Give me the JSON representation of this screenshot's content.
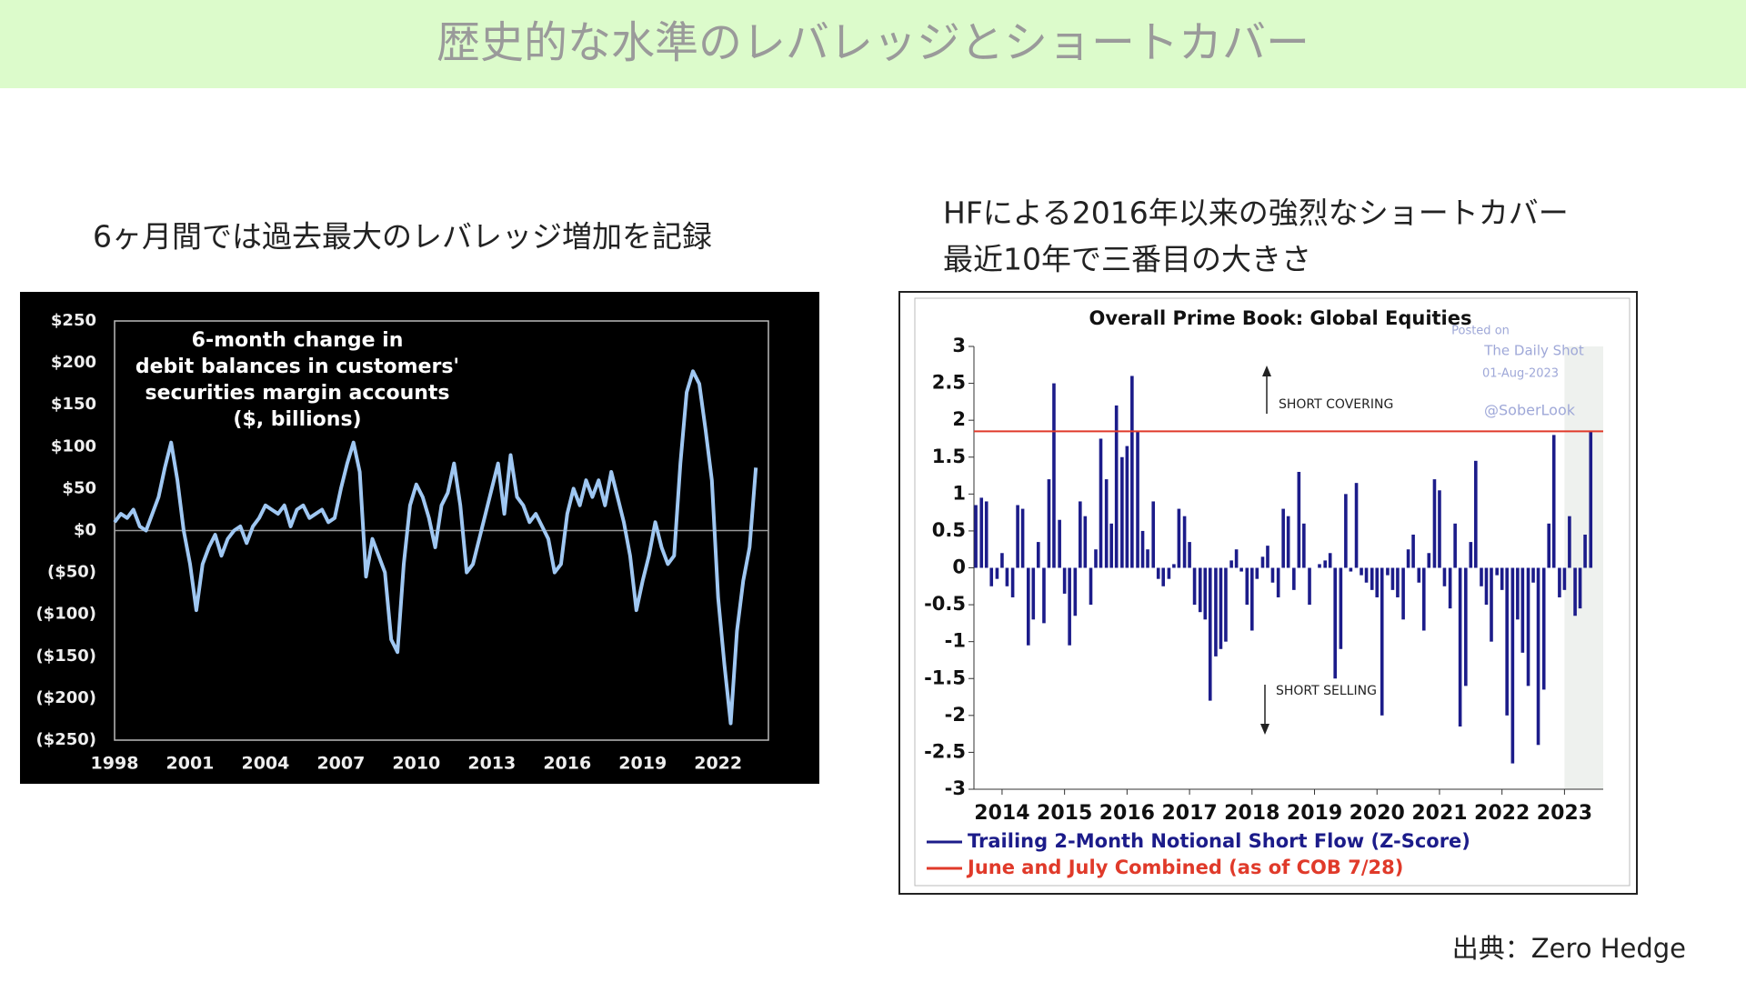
{
  "title": "歴史的な水準のレバレッジとショートカバー",
  "left_caption": "6ヶ月間では過去最大のレバレッジ増加を記録",
  "right_caption": [
    "HFによる2016年以来の強烈なショートカバー",
    "最近10年で三番目の大きさ"
  ],
  "source": "出典：Zero Hedge",
  "chart_data": [
    {
      "type": "line",
      "title_lines": [
        "6-month change in",
        "debit balances in customers'",
        "securities margin accounts",
        "($, billions)"
      ],
      "color": "#9fc7f2",
      "x": [
        1998,
        1998.25,
        1998.5,
        1998.75,
        1999,
        1999.25,
        1999.5,
        1999.75,
        2000,
        2000.25,
        2000.5,
        2000.75,
        2001,
        2001.25,
        2001.5,
        2001.75,
        2002,
        2002.25,
        2002.5,
        2002.75,
        2003,
        2003.25,
        2003.5,
        2003.75,
        2004,
        2004.25,
        2004.5,
        2004.75,
        2005,
        2005.25,
        2005.5,
        2005.75,
        2006,
        2006.25,
        2006.5,
        2006.75,
        2007,
        2007.25,
        2007.5,
        2007.75,
        2008,
        2008.25,
        2008.5,
        2008.75,
        2009,
        2009.25,
        2009.5,
        2009.75,
        2010,
        2010.25,
        2010.5,
        2010.75,
        2011,
        2011.25,
        2011.5,
        2011.75,
        2012,
        2012.25,
        2012.5,
        2012.75,
        2013,
        2013.25,
        2013.5,
        2013.75,
        2014,
        2014.25,
        2014.5,
        2014.75,
        2015,
        2015.25,
        2015.5,
        2015.75,
        2016,
        2016.25,
        2016.5,
        2016.75,
        2017,
        2017.25,
        2017.5,
        2017.75,
        2018,
        2018.25,
        2018.5,
        2018.75,
        2019,
        2019.25,
        2019.5,
        2019.75,
        2020,
        2020.25,
        2020.5,
        2020.75,
        2021,
        2021.25,
        2021.5,
        2021.75,
        2022,
        2022.25,
        2022.5,
        2022.75,
        2023,
        2023.25,
        2023.5
      ],
      "values": [
        10,
        20,
        15,
        25,
        5,
        0,
        20,
        40,
        75,
        105,
        60,
        0,
        -40,
        -95,
        -40,
        -20,
        -5,
        -30,
        -10,
        0,
        5,
        -15,
        5,
        15,
        30,
        25,
        20,
        30,
        5,
        25,
        30,
        15,
        20,
        25,
        10,
        15,
        50,
        80,
        105,
        70,
        -55,
        -10,
        -30,
        -50,
        -130,
        -145,
        -40,
        30,
        55,
        40,
        15,
        -20,
        30,
        45,
        80,
        30,
        -50,
        -40,
        -10,
        20,
        50,
        80,
        20,
        90,
        40,
        30,
        10,
        20,
        5,
        -10,
        -50,
        -40,
        20,
        50,
        30,
        60,
        40,
        60,
        30,
        70,
        40,
        10,
        -30,
        -95,
        -60,
        -30,
        10,
        -20,
        -40,
        -30,
        80,
        165,
        190,
        175,
        120,
        60,
        -80,
        -160,
        -230,
        -120,
        -60,
        -20,
        75
      ],
      "xlim": [
        1998,
        2024
      ],
      "xticks": [
        1998,
        2001,
        2004,
        2007,
        2010,
        2013,
        2016,
        2019,
        2022
      ],
      "ylim": [
        -250,
        250
      ],
      "yticks": [
        {
          "value": 250,
          "label": "$250"
        },
        {
          "value": 200,
          "label": "$200"
        },
        {
          "value": 150,
          "label": "$150"
        },
        {
          "value": 100,
          "label": "$100"
        },
        {
          "value": 50,
          "label": "$50"
        },
        {
          "value": 0,
          "label": "$0"
        },
        {
          "value": -50,
          "label": "($50)"
        },
        {
          "value": -100,
          "label": "($100)"
        },
        {
          "value": -150,
          "label": "($150)"
        },
        {
          "value": -200,
          "label": "($200)"
        },
        {
          "value": -250,
          "label": "($250)"
        }
      ]
    },
    {
      "type": "bar",
      "title": "Overall Prime Book: Global Equities",
      "watermark": [
        "Posted on",
        "The Daily Shot",
        "01-Aug-2023",
        "@SoberLook"
      ],
      "annotations": [
        "SHORT COVERING",
        "SHORT SELLING"
      ],
      "x": [
        2013.58,
        2013.67,
        2013.75,
        2013.83,
        2013.92,
        2014,
        2014.08,
        2014.17,
        2014.25,
        2014.33,
        2014.42,
        2014.5,
        2014.58,
        2014.67,
        2014.75,
        2014.83,
        2014.92,
        2015,
        2015.08,
        2015.17,
        2015.25,
        2015.33,
        2015.42,
        2015.5,
        2015.58,
        2015.67,
        2015.75,
        2015.83,
        2015.92,
        2016,
        2016.08,
        2016.17,
        2016.25,
        2016.33,
        2016.42,
        2016.5,
        2016.58,
        2016.67,
        2016.75,
        2016.83,
        2016.92,
        2017,
        2017.08,
        2017.17,
        2017.25,
        2017.33,
        2017.42,
        2017.5,
        2017.58,
        2017.67,
        2017.75,
        2017.83,
        2017.92,
        2018,
        2018.08,
        2018.17,
        2018.25,
        2018.33,
        2018.42,
        2018.5,
        2018.58,
        2018.67,
        2018.75,
        2018.83,
        2018.92,
        2019,
        2019.08,
        2019.17,
        2019.25,
        2019.33,
        2019.42,
        2019.5,
        2019.58,
        2019.67,
        2019.75,
        2019.83,
        2019.92,
        2020,
        2020.08,
        2020.17,
        2020.25,
        2020.33,
        2020.42,
        2020.5,
        2020.58,
        2020.67,
        2020.75,
        2020.83,
        2020.92,
        2021,
        2021.08,
        2021.17,
        2021.25,
        2021.33,
        2021.42,
        2021.5,
        2021.58,
        2021.67,
        2021.75,
        2021.83,
        2021.92,
        2022,
        2022.08,
        2022.17,
        2022.25,
        2022.33,
        2022.42,
        2022.5,
        2022.58,
        2022.67,
        2022.75,
        2022.83,
        2022.92,
        2023,
        2023.08,
        2023.17,
        2023.25,
        2023.33,
        2023.42
      ],
      "series": [
        {
          "name": "Trailing 2-Month Notional Short Flow (Z-Score)",
          "color": "#1c1c8a",
          "values": [
            0.85,
            0.95,
            0.9,
            -0.25,
            -0.15,
            0.2,
            -0.25,
            -0.4,
            0.85,
            0.8,
            -1.05,
            -0.7,
            0.35,
            -0.75,
            1.2,
            2.5,
            0.65,
            -0.35,
            -1.05,
            -0.65,
            0.9,
            0.7,
            -0.5,
            0.25,
            1.75,
            1.2,
            0.6,
            2.2,
            1.5,
            1.65,
            2.6,
            1.85,
            0.5,
            0.25,
            0.9,
            -0.15,
            -0.25,
            -0.15,
            0.05,
            0.8,
            0.7,
            0.35,
            -0.5,
            -0.6,
            -0.7,
            -1.8,
            -1.2,
            -1.1,
            -1,
            0.1,
            0.25,
            -0.05,
            -0.5,
            -0.85,
            -0.15,
            0.15,
            0.3,
            -0.2,
            -0.4,
            0.8,
            0.7,
            -0.3,
            1.3,
            0.6,
            -0.5,
            0,
            0.05,
            0.1,
            0.2,
            -1.5,
            -1.1,
            1,
            -0.05,
            1.15,
            -0.1,
            -0.2,
            -0.3,
            -0.4,
            -2,
            -0.1,
            -0.3,
            -0.4,
            -0.7,
            0.25,
            0.45,
            -0.2,
            -0.85,
            0.2,
            1.2,
            1.05,
            -0.25,
            -0.55,
            0.6,
            -2.15,
            -1.6,
            0.35,
            1.45,
            -0.25,
            -0.5,
            -1,
            -0.1,
            -0.3,
            -2,
            -2.65,
            -0.7,
            -1.15,
            -1.6,
            -0.2,
            -2.4,
            -1.65,
            0.6,
            1.8,
            -0.4,
            -0.3,
            0.7,
            -0.65,
            -0.55,
            0.45,
            1.85
          ]
        }
      ],
      "hline": {
        "name": "June and July Combined (as of COB 7/28)",
        "color": "#e03a2a",
        "value": 1.85
      },
      "shade": [
        2023,
        2023.62
      ],
      "xlim": [
        2013.55,
        2023.62
      ],
      "xticks": [
        2014,
        2015,
        2016,
        2017,
        2018,
        2019,
        2020,
        2021,
        2022,
        2023
      ],
      "ylim": [
        -3,
        3
      ],
      "yticks": [
        3,
        2.5,
        2,
        1.5,
        1,
        0.5,
        0,
        -0.5,
        -1,
        -1.5,
        -2,
        -2.5,
        -3
      ]
    }
  ]
}
